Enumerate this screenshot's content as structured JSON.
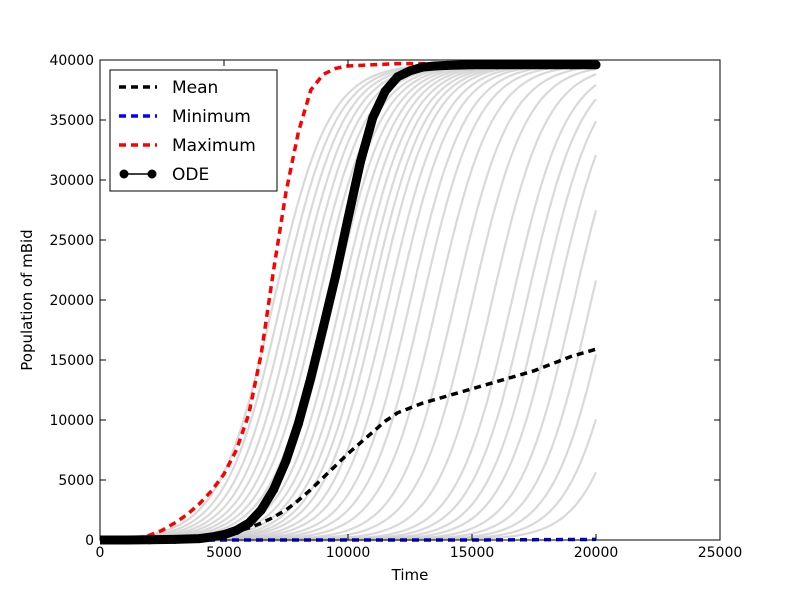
{
  "chart_data": {
    "type": "line",
    "title": "",
    "xlabel": "Time",
    "ylabel": "Population of mBid",
    "xlim": [
      0,
      25000
    ],
    "ylim": [
      0,
      40000
    ],
    "xticks": [
      0,
      5000,
      10000,
      15000,
      20000,
      25000
    ],
    "yticks": [
      0,
      5000,
      10000,
      15000,
      20000,
      25000,
      30000,
      35000,
      40000
    ],
    "xtick_labels": [
      "0",
      "5000",
      "10000",
      "15000",
      "20000",
      "25000"
    ],
    "ytick_labels": [
      "0",
      "5000",
      "10000",
      "15000",
      "20000",
      "25000",
      "30000",
      "35000",
      "40000"
    ],
    "grid": false,
    "legend_position": "top-left",
    "series": [
      {
        "name": "Mean",
        "style": "dashed",
        "color": "#000000",
        "x": [
          0,
          1000,
          2000,
          3000,
          4000,
          5000,
          5500,
          6000,
          6500,
          7000,
          7500,
          8000,
          8500,
          9000,
          9500,
          10000,
          10500,
          11000,
          11500,
          12000,
          12500,
          13000,
          13500,
          14000,
          14500,
          15000,
          15500,
          16000,
          16500,
          17000,
          17500,
          18000,
          18500,
          19000,
          19500,
          20000
        ],
        "y": [
          0,
          0,
          50,
          100,
          200,
          500,
          700,
          1000,
          1400,
          1900,
          2500,
          3300,
          4200,
          5200,
          6200,
          7200,
          8100,
          9000,
          9900,
          10600,
          11000,
          11400,
          11700,
          12000,
          12300,
          12600,
          12900,
          13200,
          13500,
          13800,
          14100,
          14500,
          14900,
          15300,
          15600,
          15900
        ]
      },
      {
        "name": "Minimum",
        "style": "dashed",
        "color": "#0000ff",
        "x": [
          0,
          5000,
          10000,
          15000,
          20000
        ],
        "y": [
          0,
          0,
          0,
          0,
          50
        ]
      },
      {
        "name": "Maximum",
        "style": "dashed",
        "color": "#ff0000",
        "x": [
          0,
          1000,
          1500,
          2000,
          2500,
          3000,
          3500,
          4000,
          4500,
          5000,
          5500,
          6000,
          6500,
          7000,
          7500,
          8000,
          8500,
          9000,
          9500,
          10000,
          11000,
          12000,
          13000,
          14000,
          15000,
          16000,
          17000,
          18000,
          19000,
          20000
        ],
        "y": [
          0,
          50,
          150,
          400,
          800,
          1400,
          2100,
          3000,
          4100,
          5500,
          7500,
          10500,
          15500,
          22500,
          29000,
          34000,
          37500,
          38800,
          39300,
          39500,
          39600,
          39700,
          39700,
          39700,
          39700,
          39700,
          39700,
          39700,
          39700,
          39700
        ]
      },
      {
        "name": "ODE",
        "style": "line-markers",
        "color": "#000000",
        "x": [
          0,
          1000,
          2000,
          3000,
          4000,
          4500,
          5000,
          5500,
          6000,
          6500,
          7000,
          7500,
          8000,
          8500,
          9000,
          9500,
          10000,
          10500,
          11000,
          11500,
          12000,
          12500,
          13000,
          13500,
          14000,
          15000,
          16000,
          17000,
          18000,
          19000,
          20000
        ],
        "y": [
          0,
          0,
          20,
          50,
          120,
          250,
          450,
          800,
          1400,
          2500,
          4200,
          6600,
          9700,
          13500,
          17700,
          22000,
          26800,
          31500,
          35200,
          37400,
          38600,
          39100,
          39400,
          39500,
          39550,
          39600,
          39600,
          39600,
          39600,
          39600,
          39600
        ]
      }
    ],
    "trajectories": {
      "color": "#c4c4c4",
      "description_free_values": true,
      "midpoints": [
        7000,
        7300,
        7600,
        7900,
        8200,
        8500,
        8800,
        9100,
        9400,
        9700,
        10000,
        10300,
        10600,
        10900,
        11200,
        11600,
        12000,
        12500,
        13000,
        13600,
        14300,
        15000,
        15800,
        16600,
        17200,
        17800,
        18400,
        19100,
        19800,
        20500,
        21200,
        22000
      ],
      "steepness": 0.0009,
      "x_end": 20000,
      "ymax": 39700
    }
  }
}
